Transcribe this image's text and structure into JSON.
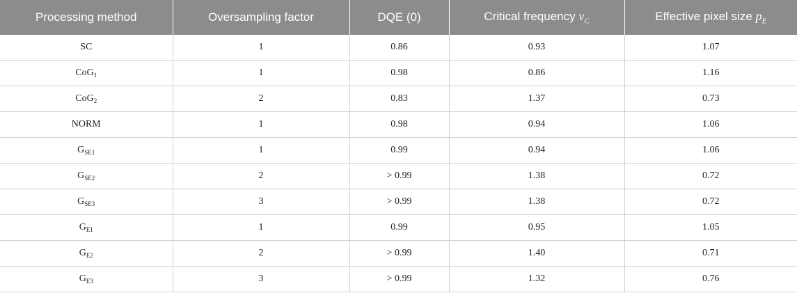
{
  "header": {
    "col1": "Processing method",
    "col2": "Oversampling factor",
    "col3": "DQE (0)",
    "col4": "Critical frequency",
    "col4_symbol": "ν",
    "col4_sub": "C",
    "col5": "Effective pixel size",
    "col5_symbol": "p",
    "col5_sub": "E"
  },
  "rows": [
    {
      "method": "SC",
      "sub": "",
      "factor": "1",
      "dqe": "0.86",
      "freq": "0.93",
      "pixel": "1.07"
    },
    {
      "method": "CoG",
      "sub": "1",
      "factor": "1",
      "dqe": "0.98",
      "freq": "0.86",
      "pixel": "1.16"
    },
    {
      "method": "CoG",
      "sub": "2",
      "factor": "2",
      "dqe": "0.83",
      "freq": "1.37",
      "pixel": "0.73"
    },
    {
      "method": "NORM",
      "sub": "",
      "factor": "1",
      "dqe": "0.98",
      "freq": "0.94",
      "pixel": "1.06"
    },
    {
      "method": "G",
      "sub": "SE1",
      "factor": "1",
      "dqe": "0.99",
      "freq": "0.94",
      "pixel": "1.06"
    },
    {
      "method": "G",
      "sub": "SE2",
      "factor": "2",
      "dqe": "> 0.99",
      "freq": "1.38",
      "pixel": "0.72"
    },
    {
      "method": "G",
      "sub": "SE3",
      "factor": "3",
      "dqe": "> 0.99",
      "freq": "1.38",
      "pixel": "0.72"
    },
    {
      "method": "G",
      "sub": "E1",
      "factor": "1",
      "dqe": "0.99",
      "freq": "0.95",
      "pixel": "1.05"
    },
    {
      "method": "G",
      "sub": "E2",
      "factor": "2",
      "dqe": "> 0.99",
      "freq": "1.40",
      "pixel": "0.71"
    },
    {
      "method": "G",
      "sub": "E3",
      "factor": "3",
      "dqe": "> 0.99",
      "freq": "1.32",
      "pixel": "0.76"
    }
  ]
}
